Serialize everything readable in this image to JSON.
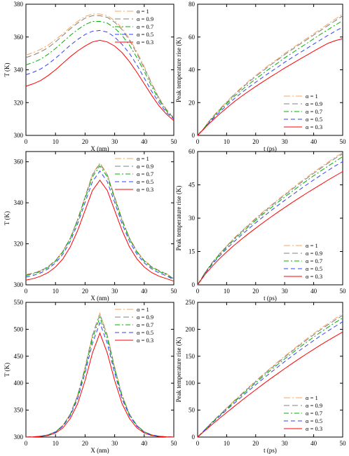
{
  "chart_data": [
    {
      "type": "line",
      "xlabel": "X (nm)",
      "ylabel": "T (K)",
      "xlim": [
        0,
        50
      ],
      "ylim": [
        300,
        380
      ],
      "xticks": [
        0,
        10,
        20,
        30,
        40,
        50
      ],
      "yticks": [
        300,
        320,
        340,
        360,
        380
      ],
      "legend": "top-right",
      "x": [
        0,
        2.5,
        5,
        7.5,
        10,
        12.5,
        15,
        17.5,
        20,
        22.5,
        25,
        27.5,
        30,
        32.5,
        35,
        37.5,
        40,
        42.5,
        45,
        47.5,
        50
      ],
      "series": [
        {
          "name": "α = 1",
          "color": "#f4a460",
          "dash": "9,3,2,3",
          "values": [
            349,
            350.5,
            352.5,
            355,
            358.5,
            362,
            366,
            369.5,
            372.5,
            374,
            374,
            373,
            370,
            365.5,
            359,
            351,
            342,
            332,
            323,
            316,
            311
          ]
        },
        {
          "name": "α = 0.9",
          "color": "#808080",
          "dash": "8,4",
          "values": [
            347.5,
            349,
            351,
            353.5,
            357,
            361,
            365,
            368.5,
            371.5,
            373,
            373,
            372,
            369,
            364.5,
            358,
            350,
            341,
            331.5,
            322.5,
            315.5,
            310.5
          ]
        },
        {
          "name": "α = 0.7",
          "color": "#00b000",
          "dash": "7,3,2,3",
          "values": [
            343,
            344.5,
            346.5,
            349.5,
            353,
            357,
            361,
            364.5,
            367.5,
            369.5,
            369.5,
            368.5,
            365.5,
            361,
            355,
            347.5,
            339,
            330,
            321.5,
            315,
            310
          ]
        },
        {
          "name": "α = 0.5",
          "color": "#3040ff",
          "dash": "6,4",
          "values": [
            337,
            338.5,
            340.5,
            343.5,
            347,
            351,
            355,
            358.5,
            361.5,
            363.5,
            364,
            363,
            360,
            355.5,
            350,
            343,
            335,
            327,
            320,
            314,
            310
          ]
        },
        {
          "name": "α = 0.3",
          "color": "#ff0000",
          "dash": "",
          "values": [
            330,
            331.5,
            333.5,
            336.5,
            340,
            344,
            348,
            351.5,
            354.5,
            357,
            358,
            357,
            354.5,
            350.5,
            345,
            338.5,
            331.5,
            324.5,
            318,
            313,
            309
          ]
        }
      ]
    },
    {
      "type": "line",
      "xlabel": "t (ps)",
      "ylabel": "Peak temperature rise (K)",
      "xlim": [
        0,
        50
      ],
      "ylim": [
        0,
        80
      ],
      "xticks": [
        0,
        10,
        20,
        30,
        40,
        50
      ],
      "yticks": [
        0,
        20,
        40,
        60,
        80
      ],
      "legend": "bottom-right",
      "x": [
        0,
        1,
        2,
        3,
        4,
        5,
        7.5,
        10,
        12.5,
        15,
        17.5,
        20,
        22.5,
        25,
        27.5,
        30,
        32.5,
        35,
        37.5,
        40,
        42.5,
        45,
        47.5,
        50
      ],
      "series": [
        {
          "name": "α = 1",
          "values": [
            0,
            2,
            4,
            6.5,
            9,
            11,
            16,
            20.5,
            25,
            29,
            33,
            36.5,
            40,
            43.5,
            46.5,
            50,
            53,
            56,
            59,
            62,
            65,
            68,
            71,
            74
          ]
        },
        {
          "name": "α = 0.9",
          "values": [
            0,
            2,
            4,
            6.3,
            8.7,
            10.7,
            15.6,
            20,
            24.5,
            28.5,
            32.3,
            35.9,
            39.3,
            42.8,
            45.9,
            49.3,
            52.3,
            55.3,
            58.2,
            61.2,
            64.1,
            67.1,
            70,
            73
          ]
        },
        {
          "name": "α = 0.7",
          "values": [
            0,
            2,
            3.9,
            6,
            8.3,
            10.2,
            15,
            19.3,
            23.6,
            27.4,
            31,
            34.4,
            37.7,
            41,
            44,
            47.3,
            50.2,
            53.1,
            56,
            58.9,
            61.8,
            64.6,
            67.3,
            70
          ]
        },
        {
          "name": "α = 0.5",
          "values": [
            0,
            2,
            3.8,
            5.8,
            7.8,
            9.6,
            14.1,
            18.2,
            22.2,
            25.8,
            29.2,
            32.4,
            35.5,
            38.6,
            41.5,
            44.6,
            47.4,
            50.2,
            52.9,
            55.7,
            58.4,
            61.1,
            63.6,
            66
          ]
        },
        {
          "name": "α = 0.3",
          "values": [
            0,
            1.9,
            3.6,
            5.5,
            7.3,
            8.9,
            13,
            16.7,
            20.4,
            23.7,
            26.8,
            29.8,
            32.7,
            35.6,
            38.3,
            41.1,
            43.7,
            46.3,
            48.8,
            51.4,
            53.8,
            56.2,
            57.8,
            59
          ]
        }
      ]
    },
    {
      "type": "line",
      "xlabel": "X (nm)",
      "ylabel": "T (K)",
      "xlim": [
        0,
        50
      ],
      "ylim": [
        300,
        365
      ],
      "xticks": [
        0,
        10,
        20,
        30,
        40,
        50
      ],
      "yticks": [
        300,
        320,
        340,
        360
      ],
      "legend": "top-right",
      "x": [
        0,
        2.5,
        5,
        7.5,
        10,
        12.5,
        15,
        17.5,
        20,
        22.5,
        25,
        27.5,
        30,
        32.5,
        35,
        37.5,
        40,
        42.5,
        45,
        47.5,
        50
      ],
      "series": [
        {
          "name": "α = 1",
          "values": [
            305,
            305.8,
            307,
            309,
            312,
            316.5,
            323,
            332,
            343,
            354,
            359.5,
            354,
            343,
            332,
            323,
            316.5,
            312,
            309,
            307,
            305.5,
            303
          ]
        },
        {
          "name": "α = 0.9",
          "values": [
            304.8,
            305.6,
            306.8,
            308.8,
            311.8,
            316.3,
            322.8,
            331.8,
            342.7,
            353.6,
            359,
            353.6,
            342.7,
            331.8,
            322.8,
            316.3,
            311.8,
            308.8,
            306.8,
            305.3,
            302.9
          ]
        },
        {
          "name": "α = 0.7",
          "values": [
            304.5,
            305.3,
            306.5,
            308.5,
            311.5,
            316,
            322.4,
            331.2,
            342,
            352.6,
            358,
            352.6,
            342,
            331.2,
            322.4,
            316,
            311.5,
            308.5,
            306.5,
            305,
            302.8
          ]
        },
        {
          "name": "α = 0.5",
          "values": [
            303.8,
            304.6,
            305.8,
            307.8,
            310.7,
            315,
            321.2,
            329.8,
            340.2,
            350.3,
            355.5,
            350.3,
            340.2,
            329.8,
            321.2,
            315,
            310.7,
            307.8,
            305.8,
            304.4,
            302.5
          ]
        },
        {
          "name": "α = 0.3",
          "values": [
            302.3,
            303,
            304.2,
            306,
            308.7,
            312.7,
            318.5,
            326.5,
            336.3,
            346,
            351,
            346,
            336.3,
            326.5,
            318.5,
            312.7,
            308.7,
            306,
            304.2,
            303,
            301.8
          ]
        }
      ]
    },
    {
      "type": "line",
      "xlabel": "t (ps)",
      "ylabel": "Peak temperature rise (K)",
      "xlim": [
        0,
        50
      ],
      "ylim": [
        0,
        60
      ],
      "xticks": [
        0,
        10,
        20,
        30,
        40,
        50
      ],
      "yticks": [
        0,
        15,
        30,
        45,
        60
      ],
      "legend": "bottom-right",
      "x": [
        0,
        2.5,
        5,
        7.5,
        10,
        12.5,
        15,
        17.5,
        20,
        22.5,
        25,
        27.5,
        30,
        32.5,
        35,
        37.5,
        40,
        42.5,
        45,
        47.5,
        50
      ],
      "series": [
        {
          "name": "α = 1",
          "values": [
            0,
            5.5,
            10,
            14,
            17.5,
            21,
            24,
            27,
            30,
            32.8,
            35.5,
            38.2,
            40.8,
            43.4,
            45.9,
            48.3,
            50.7,
            53,
            55.3,
            57.5,
            59.5
          ]
        },
        {
          "name": "α = 0.9",
          "values": [
            0,
            5.4,
            9.9,
            13.8,
            17.3,
            20.7,
            23.7,
            26.7,
            29.6,
            32.4,
            35.1,
            37.8,
            40.3,
            42.9,
            45.4,
            47.8,
            50.2,
            52.5,
            54.8,
            57,
            59
          ]
        },
        {
          "name": "α = 0.7",
          "values": [
            0,
            5.3,
            9.6,
            13.5,
            16.9,
            20.2,
            23.2,
            26.1,
            29,
            31.8,
            34.4,
            37,
            39.5,
            42,
            44.4,
            46.8,
            49.1,
            51.3,
            53.5,
            55.6,
            57.7
          ]
        },
        {
          "name": "α = 0.5",
          "values": [
            0,
            5.1,
            9.2,
            12.9,
            16.2,
            19.4,
            22.3,
            25.1,
            27.9,
            30.5,
            33.1,
            35.6,
            38,
            40.4,
            42.7,
            45,
            47.2,
            49.4,
            51.5,
            53.6,
            55.5
          ]
        },
        {
          "name": "α = 0.3",
          "values": [
            0,
            4.6,
            8.3,
            11.7,
            14.8,
            17.7,
            20.4,
            23,
            25.5,
            27.9,
            30.3,
            32.6,
            34.8,
            37,
            39.1,
            41.2,
            43.2,
            45.2,
            47.2,
            49.1,
            51
          ]
        }
      ]
    },
    {
      "type": "line",
      "xlabel": "X (nm)",
      "ylabel": "T (K)",
      "xlim": [
        0,
        50
      ],
      "ylim": [
        300,
        550
      ],
      "xticks": [
        0,
        10,
        20,
        30,
        40,
        50
      ],
      "yticks": [
        300,
        350,
        400,
        450,
        500,
        550
      ],
      "legend": "top-right",
      "x": [
        0,
        2.5,
        5,
        7.5,
        10,
        12.5,
        15,
        17.5,
        20,
        22.5,
        25,
        27.5,
        30,
        32.5,
        35,
        37.5,
        40,
        42.5,
        45,
        47.5,
        50
      ],
      "series": [
        {
          "name": "α = 1",
          "values": [
            300,
            300.5,
            301.5,
            304,
            310,
            322,
            343,
            378,
            430,
            490,
            530,
            490,
            430,
            378,
            343,
            322,
            310,
            304,
            301.5,
            300.5,
            300
          ]
        },
        {
          "name": "α = 0.9",
          "values": [
            300,
            300.5,
            301.5,
            304,
            310,
            321.5,
            342.5,
            377,
            428.5,
            488,
            528,
            488,
            428.5,
            377,
            342.5,
            321.5,
            310,
            304,
            301.5,
            300.5,
            300
          ]
        },
        {
          "name": "α = 0.7",
          "values": [
            300,
            300.5,
            301.5,
            304,
            309.5,
            321,
            341.5,
            375,
            425,
            483,
            522,
            483,
            425,
            375,
            341.5,
            321,
            309.5,
            304,
            301.5,
            300.5,
            300
          ]
        },
        {
          "name": "α = 0.5",
          "values": [
            300,
            300.5,
            301.5,
            303.8,
            309,
            320,
            339.5,
            371,
            419,
            474,
            512,
            474,
            419,
            371,
            339.5,
            320,
            309,
            303.8,
            301.5,
            300.5,
            300
          ]
        },
        {
          "name": "α = 0.3",
          "values": [
            300,
            300.3,
            301,
            303,
            307.5,
            317,
            334.5,
            362,
            405,
            456,
            493,
            456,
            405,
            362,
            334.5,
            317,
            307.5,
            303,
            301,
            300.3,
            300
          ]
        }
      ]
    },
    {
      "type": "line",
      "xlabel": "t (ps)",
      "ylabel": "Peak temperature rise (K)",
      "xlim": [
        0,
        50
      ],
      "ylim": [
        0,
        250
      ],
      "xticks": [
        0,
        10,
        20,
        30,
        40,
        50
      ],
      "yticks": [
        0,
        50,
        100,
        150,
        200,
        250
      ],
      "legend": "bottom-right",
      "x": [
        0,
        2.5,
        5,
        7.5,
        10,
        12.5,
        15,
        17.5,
        20,
        22.5,
        25,
        27.5,
        30,
        32.5,
        35,
        37.5,
        40,
        42.5,
        45,
        47.5,
        50
      ],
      "series": [
        {
          "name": "α = 1",
          "values": [
            0,
            14,
            28,
            41,
            54,
            67,
            79.5,
            92,
            104,
            116,
            127.5,
            139,
            150,
            161,
            171.5,
            182,
            192,
            202,
            211,
            220,
            229
          ]
        },
        {
          "name": "α = 0.9",
          "values": [
            0,
            13.8,
            27.6,
            40.5,
            53.3,
            66,
            78.5,
            90.8,
            102.7,
            114.5,
            126,
            137.3,
            148.3,
            159.1,
            169.6,
            179.8,
            189.8,
            199.6,
            208.6,
            217.4,
            226
          ]
        },
        {
          "name": "α = 0.7",
          "values": [
            0,
            13.5,
            27,
            39.6,
            52.2,
            64.6,
            76.8,
            88.8,
            100.5,
            112,
            123.3,
            134.4,
            145.1,
            155.6,
            165.9,
            175.9,
            185.6,
            195.1,
            204,
            212.7,
            221
          ]
        },
        {
          "name": "α = 0.5",
          "values": [
            0,
            13,
            26,
            38.2,
            50.3,
            62.3,
            74,
            85.6,
            96.9,
            108,
            118.9,
            129.6,
            140,
            150.2,
            160.1,
            169.8,
            179.2,
            188.4,
            197.2,
            205.7,
            214
          ]
        },
        {
          "name": "α = 0.3",
          "values": [
            0,
            11.8,
            23.5,
            34.6,
            45.6,
            56.4,
            67,
            77.5,
            87.8,
            97.9,
            107.8,
            117.5,
            127,
            136.3,
            145.4,
            154.3,
            162.9,
            171.3,
            179.4,
            187.3,
            195
          ]
        }
      ]
    }
  ]
}
